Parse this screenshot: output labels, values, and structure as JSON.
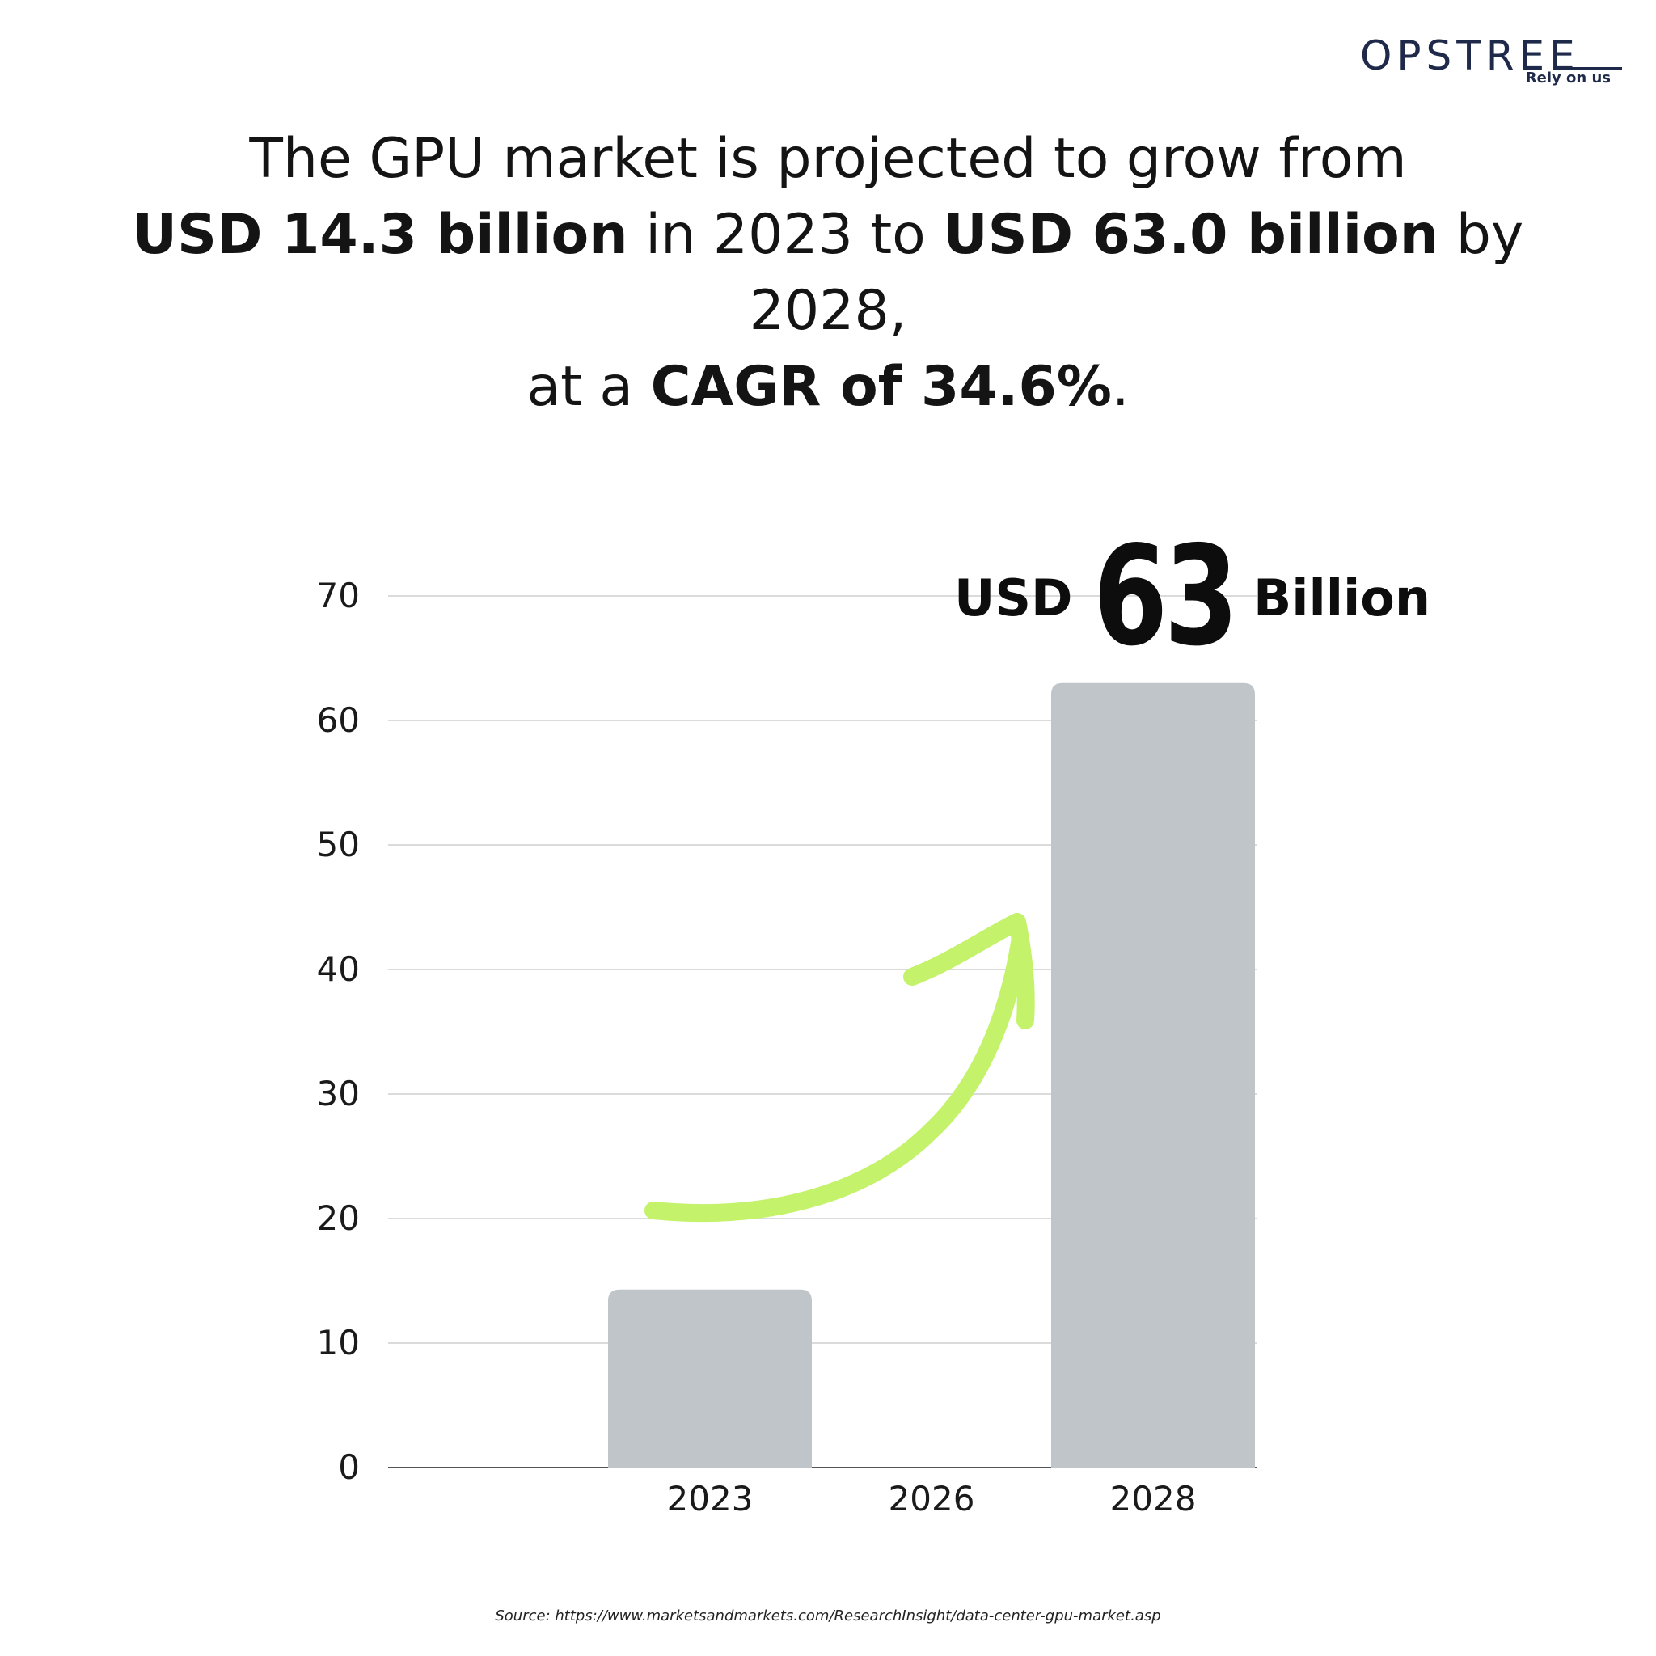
{
  "brand": {
    "name": "OPSTREE",
    "tagline": "Rely on us",
    "color": "#1f2a4a"
  },
  "headline": {
    "line1": "The GPU market is projected to grow from",
    "line2_bold_a": "USD 14.3 billion",
    "line2_mid": " in 2023 to ",
    "line2_bold_b": "USD 63.0 billion",
    "line2_end": " by 2028,",
    "line3_start": "at a ",
    "line3_bold": "CAGR of 34.6%",
    "line3_end": "."
  },
  "callout": {
    "prefix": "USD",
    "number": "63",
    "suffix": "Billion"
  },
  "chart_data": {
    "type": "bar",
    "categories": [
      "2023",
      "2026",
      "2028"
    ],
    "values": [
      14.3,
      null,
      63
    ],
    "ylim": [
      0,
      70
    ],
    "yticks": [
      0,
      10,
      20,
      30,
      40,
      50,
      60,
      70
    ],
    "grid": true,
    "bar_color": "#bfc5c8",
    "arrow_color": "#c4f26a",
    "annotation": "USD 63 Billion"
  },
  "source": "Source: https://www.marketsandmarkets.com/ResearchInsight/data-center-gpu-market.asp"
}
